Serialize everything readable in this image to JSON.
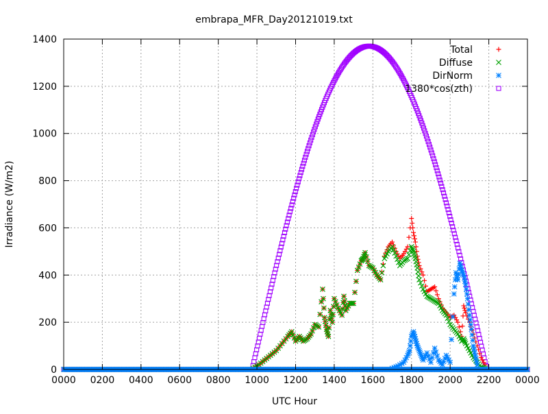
{
  "chart_data": {
    "type": "scatter",
    "title": "embrapa_MFR_Day20121019.txt",
    "xlabel": "UTC Hour",
    "ylabel": "Irradiance (W/m2)",
    "xlim": [
      0,
      24
    ],
    "ylim": [
      0,
      1400
    ],
    "x_ticks": [
      {
        "v": 0,
        "label": "0000"
      },
      {
        "v": 2,
        "label": "0200"
      },
      {
        "v": 4,
        "label": "0400"
      },
      {
        "v": 6,
        "label": "0600"
      },
      {
        "v": 8,
        "label": "0800"
      },
      {
        "v": 10,
        "label": "1000"
      },
      {
        "v": 12,
        "label": "1200"
      },
      {
        "v": 14,
        "label": "1400"
      },
      {
        "v": 16,
        "label": "1600"
      },
      {
        "v": 18,
        "label": "1800"
      },
      {
        "v": 20,
        "label": "2000"
      },
      {
        "v": 22,
        "label": "2200"
      },
      {
        "v": 24,
        "label": "0000"
      }
    ],
    "y_ticks": [
      0,
      200,
      400,
      600,
      800,
      1000,
      1200,
      1400
    ],
    "grid": true,
    "legend_position": "top-right",
    "series": [
      {
        "name": "Total",
        "marker": "plus",
        "color": "#ff0000",
        "x": [
          9.8,
          10.1,
          10.4,
          10.7,
          11.0,
          11.3,
          11.6,
          11.8,
          12.0,
          12.2,
          12.4,
          12.6,
          12.8,
          13.0,
          13.2,
          13.4,
          13.5,
          13.6,
          13.7,
          13.8,
          13.9,
          14.0,
          14.2,
          14.4,
          14.5,
          14.6,
          14.8,
          15.0,
          15.2,
          15.4,
          15.5,
          15.6,
          15.8,
          16.0,
          16.2,
          16.4,
          16.6,
          16.8,
          17.0,
          17.2,
          17.4,
          17.6,
          17.8,
          18.0,
          18.1,
          18.2,
          18.3,
          18.4,
          18.6,
          18.8,
          19.0,
          19.2,
          19.4,
          19.6,
          19.8,
          20.0,
          20.2,
          20.4,
          20.6,
          20.7,
          20.8,
          21.0,
          21.2,
          21.4,
          21.6,
          21.8
        ],
        "y": [
          5,
          20,
          40,
          60,
          80,
          110,
          140,
          160,
          120,
          140,
          120,
          130,
          150,
          190,
          180,
          340,
          220,
          170,
          140,
          250,
          200,
          300,
          260,
          230,
          310,
          250,
          280,
          280,
          420,
          460,
          470,
          495,
          440,
          430,
          400,
          380,
          480,
          520,
          540,
          500,
          470,
          490,
          520,
          640,
          580,
          540,
          480,
          440,
          400,
          330,
          340,
          350,
          300,
          260,
          240,
          220,
          230,
          200,
          140,
          270,
          240,
          200,
          150,
          100,
          50,
          20
        ],
        "baseline": {
          "x0": 0,
          "x1": 24,
          "y": 0
        }
      },
      {
        "name": "Diffuse",
        "marker": "cross",
        "color": "#00a000",
        "x": [
          9.8,
          10.1,
          10.4,
          10.7,
          11.0,
          11.3,
          11.6,
          11.8,
          12.0,
          12.2,
          12.4,
          12.6,
          12.8,
          13.0,
          13.2,
          13.4,
          13.5,
          13.6,
          13.7,
          13.8,
          13.9,
          14.0,
          14.2,
          14.4,
          14.5,
          14.6,
          14.8,
          15.0,
          15.2,
          15.4,
          15.5,
          15.6,
          15.8,
          16.0,
          16.2,
          16.4,
          16.6,
          16.8,
          17.0,
          17.2,
          17.4,
          17.6,
          17.8,
          18.0,
          18.1,
          18.2,
          18.3,
          18.4,
          18.6,
          18.8,
          19.0,
          19.2,
          19.4,
          19.6,
          19.8,
          20.0,
          20.2,
          20.4,
          20.6,
          20.7,
          20.8,
          21.0,
          21.2,
          21.4,
          21.6,
          21.8
        ],
        "y": [
          5,
          20,
          40,
          60,
          80,
          110,
          140,
          160,
          120,
          140,
          120,
          130,
          150,
          190,
          180,
          340,
          220,
          170,
          140,
          250,
          200,
          300,
          260,
          230,
          310,
          250,
          280,
          280,
          420,
          460,
          470,
          495,
          440,
          430,
          400,
          380,
          470,
          500,
          520,
          480,
          440,
          460,
          470,
          520,
          500,
          470,
          430,
          380,
          340,
          310,
          300,
          290,
          280,
          250,
          230,
          190,
          170,
          150,
          120,
          130,
          110,
          80,
          50,
          30,
          10,
          5
        ],
        "baseline": {
          "x0": 0,
          "x1": 24,
          "y": 0
        }
      },
      {
        "name": "DirNorm",
        "marker": "star",
        "color": "#0080ff",
        "x": [
          17.0,
          17.3,
          17.6,
          17.8,
          17.9,
          18.0,
          18.1,
          18.2,
          18.3,
          18.4,
          18.5,
          18.6,
          18.8,
          19.0,
          19.2,
          19.4,
          19.6,
          19.8,
          20.0,
          20.2,
          20.3,
          20.4,
          20.5,
          20.6,
          20.7,
          20.8,
          20.9,
          21.0,
          21.1,
          21.2,
          21.3,
          21.4
        ],
        "y": [
          5,
          15,
          30,
          60,
          80,
          140,
          160,
          130,
          100,
          80,
          60,
          40,
          70,
          30,
          90,
          40,
          20,
          60,
          30,
          320,
          410,
          380,
          450,
          420,
          400,
          360,
          300,
          230,
          170,
          100,
          60,
          20
        ],
        "baseline": {
          "x0": 0,
          "x1": 24,
          "y": 0
        }
      },
      {
        "name": "1380*cos(zth)",
        "marker": "square",
        "color": "#a000ff",
        "curve": {
          "sunrise": 9.75,
          "sunset": 21.9,
          "peak_x": 15.8,
          "peak_y": 1370
        },
        "baseline": {
          "x0": 0,
          "x1": 24,
          "y": 0
        }
      }
    ]
  }
}
